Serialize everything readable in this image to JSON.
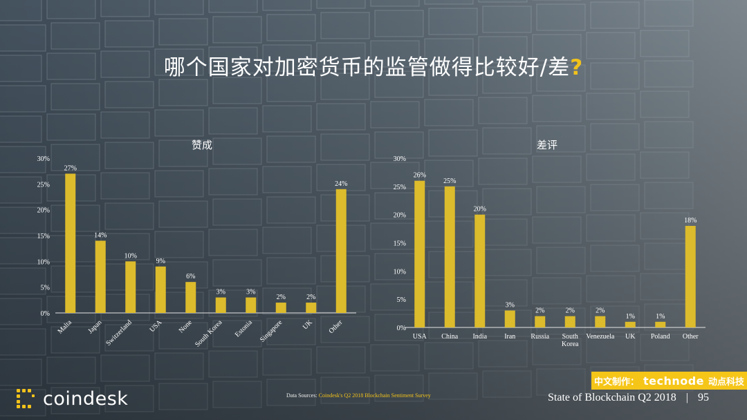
{
  "title_main": "哪个国家对加密货币的监管做得比较好/差",
  "title_mark": "?",
  "colors": {
    "bar": "#dcbb2c",
    "accent": "#f2c21b",
    "badge": "#f5c518"
  },
  "chart_data": [
    {
      "type": "bar",
      "title": "赞成",
      "categories": [
        "Malta",
        "Japan",
        "Switzerland",
        "USA",
        "None",
        "South Korea",
        "Estonia",
        "Singapore",
        "UK",
        "Other"
      ],
      "values": [
        27,
        14,
        10,
        9,
        6,
        3,
        3,
        2,
        2,
        24
      ],
      "labels": [
        "27%",
        "14%",
        "10%",
        "9%",
        "6%",
        "3%",
        "3%",
        "2%",
        "2%",
        "24%"
      ],
      "yticks": [
        "0%",
        "5%",
        "10%",
        "15%",
        "20%",
        "25%",
        "30%"
      ],
      "ylim": [
        0,
        30
      ],
      "xlabel_rotation": "rotated"
    },
    {
      "type": "bar",
      "title": "差评",
      "categories": [
        "USA",
        "China",
        "India",
        "Iran",
        "Russia",
        "South Korea",
        "Venezuela",
        "UK",
        "Poland",
        "Other"
      ],
      "values": [
        26,
        25,
        20,
        3,
        2,
        2,
        2,
        1,
        1,
        18
      ],
      "labels": [
        "26%",
        "25%",
        "20%",
        "3%",
        "2%",
        "2%",
        "2%",
        "1%",
        "1%",
        "18%"
      ],
      "yticks": [
        "0%",
        "5%",
        "10%",
        "15%",
        "20%",
        "25%",
        "30%"
      ],
      "ylim": [
        0,
        30
      ],
      "xlabel_rotation": "horizontal"
    }
  ],
  "source": {
    "prefix": "Data Sources: ",
    "link": "Coindesk's Q2 2018 Blockchain Sentiment Survey"
  },
  "logo": {
    "text": "coindesk",
    "icon": "coindesk-logo-icon"
  },
  "footer": {
    "report": "State of Blockchain Q2 2018",
    "sep": "|",
    "page": "95"
  },
  "badge": {
    "prefix": "中文制作：",
    "brand": "technode",
    "suffix": "动点科技"
  }
}
